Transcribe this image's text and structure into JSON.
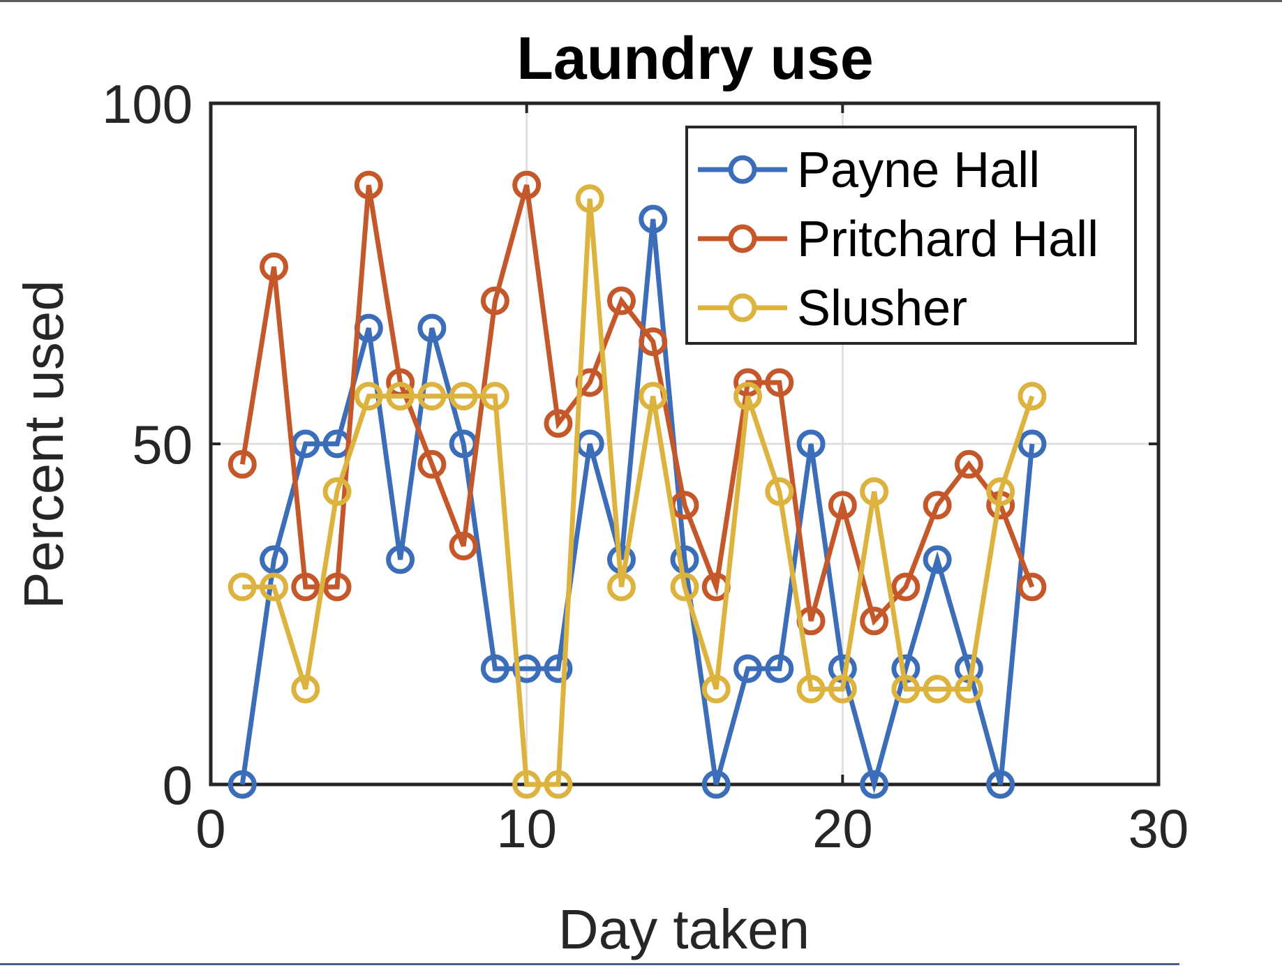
{
  "chart_data": {
    "type": "line",
    "title": "Laundry use",
    "xlabel": "Day taken",
    "ylabel": "Percent used",
    "xlim": [
      0,
      30
    ],
    "ylim": [
      0,
      100
    ],
    "xticks": [
      0,
      10,
      20,
      30
    ],
    "yticks": [
      0,
      50,
      100
    ],
    "grid": true,
    "legend_position": "top-right",
    "x": [
      1,
      2,
      3,
      4,
      5,
      6,
      7,
      8,
      9,
      10,
      11,
      12,
      13,
      14,
      15,
      16,
      17,
      18,
      19,
      20,
      21,
      22,
      23,
      24,
      25,
      26
    ],
    "series": [
      {
        "name": "Payne Hall",
        "color": "#3c6db8",
        "values": [
          0,
          33,
          50,
          50,
          67,
          33,
          67,
          50,
          17,
          17,
          17,
          50,
          33,
          83,
          33,
          0,
          17,
          17,
          50,
          17,
          0,
          17,
          33,
          17,
          0,
          50
        ]
      },
      {
        "name": "Pritchard Hall",
        "color": "#c5582a",
        "values": [
          47,
          76,
          29,
          29,
          88,
          59,
          47,
          35,
          71,
          88,
          53,
          59,
          71,
          65,
          41,
          29,
          59,
          59,
          24,
          41,
          24,
          29,
          41,
          47,
          41,
          29
        ]
      },
      {
        "name": "Slusher",
        "color": "#ddb340",
        "values": [
          29,
          29,
          14,
          43,
          57,
          57,
          57,
          57,
          57,
          0,
          0,
          86,
          29,
          57,
          29,
          14,
          57,
          43,
          14,
          14,
          43,
          14,
          14,
          14,
          43,
          57
        ]
      }
    ]
  }
}
